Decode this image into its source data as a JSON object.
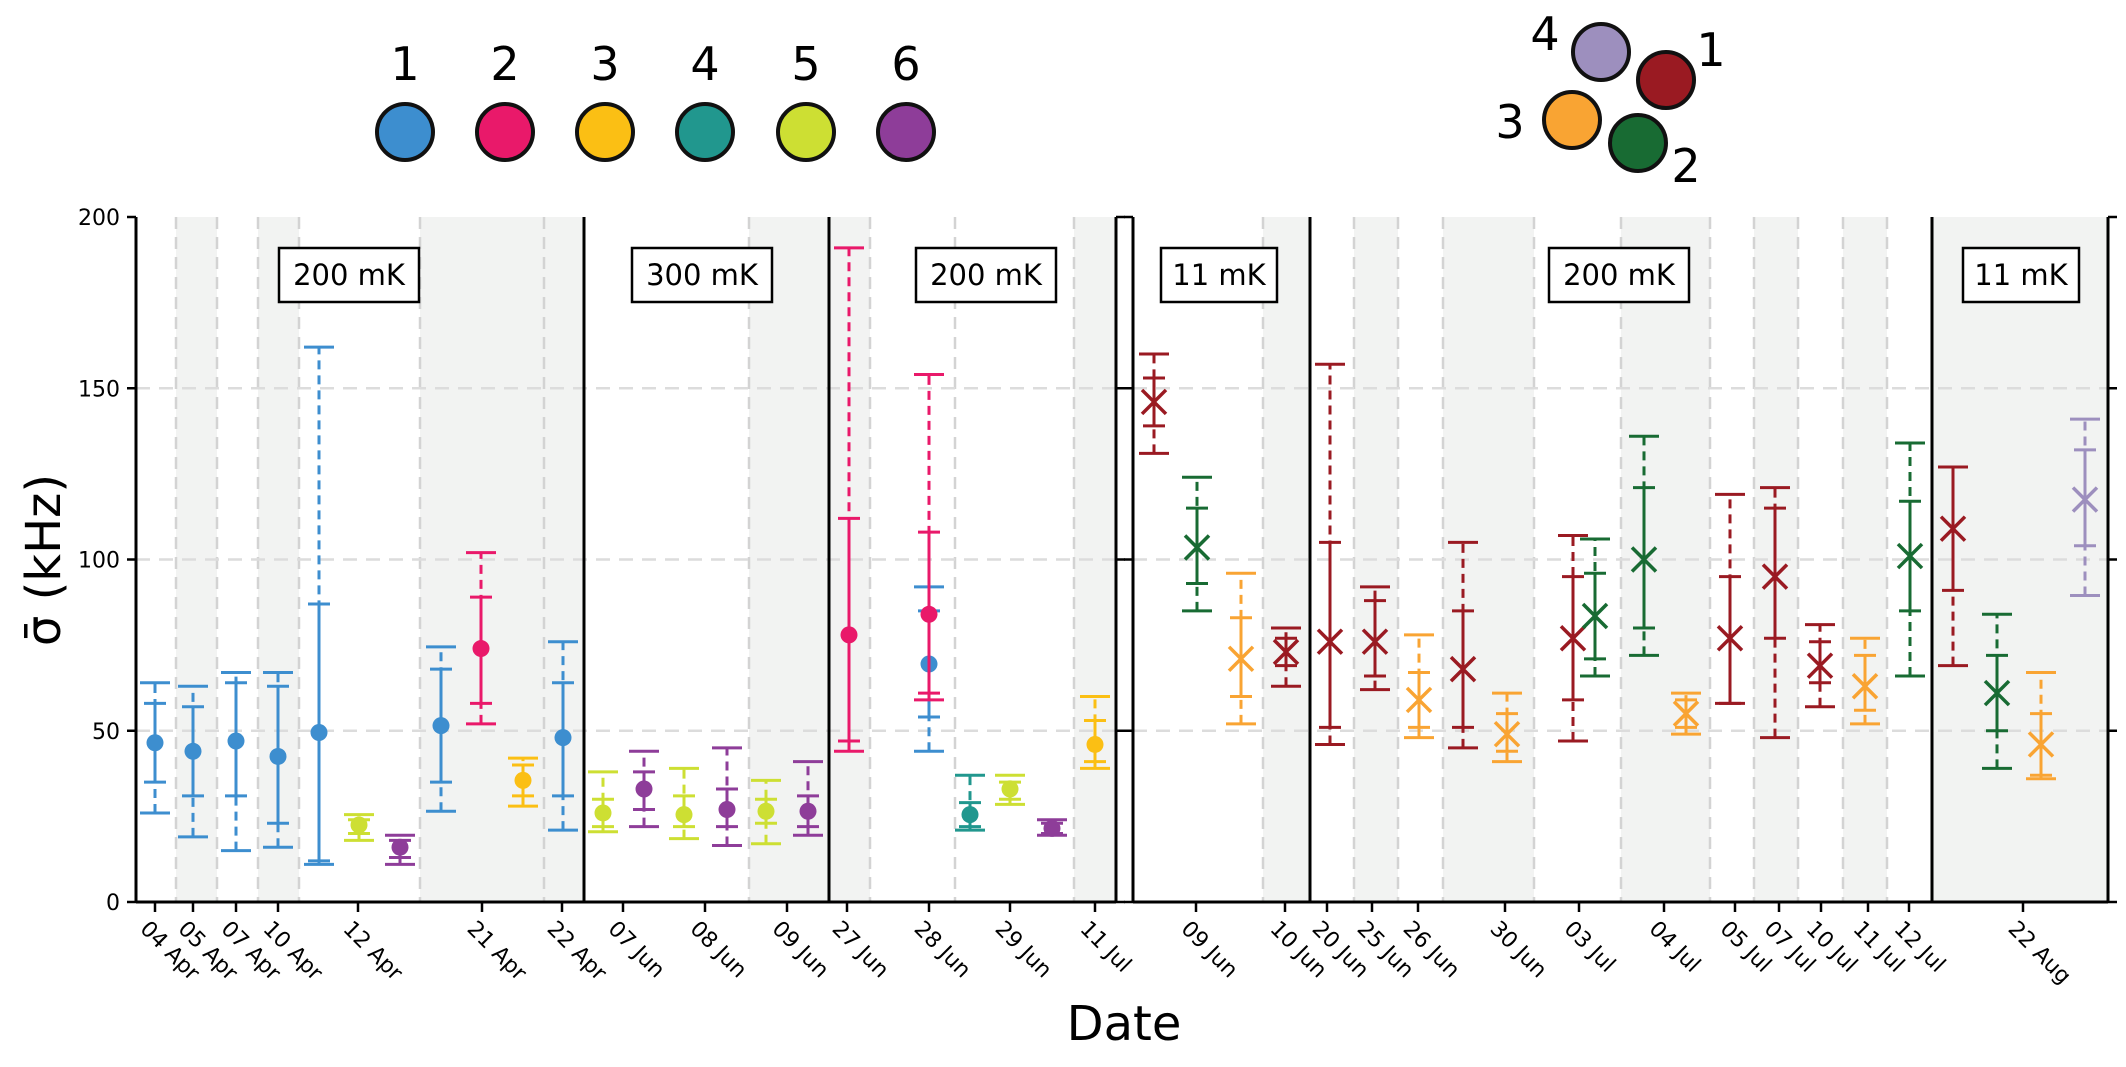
{
  "chart_data": {
    "type": "errorbar",
    "ylabel": "σ̄ (kHz)",
    "xlabel": "Date",
    "ylim": [
      0,
      200
    ],
    "yticks": [
      0,
      50,
      100,
      150,
      200
    ],
    "grid": "horizontal dashed",
    "colors": {
      "1": "#3d8ecf",
      "2": "#e9196a",
      "3": "#fbbf14",
      "4": "#21978e",
      "5": "#cddf33",
      "6": "#8e3d99",
      "r1": "#9a1a22",
      "r2": "#186b33",
      "r3": "#f9a433",
      "r4": "#9d8fbe"
    },
    "legends": {
      "left": {
        "labels": [
          "1",
          "2",
          "3",
          "4",
          "5",
          "6"
        ]
      },
      "right": {
        "labels": [
          "1",
          "2",
          "3",
          "4"
        ]
      }
    },
    "panels": [
      {
        "temp_labels": [
          "200 mK",
          "300 mK",
          "200 mK"
        ],
        "dates": [
          "04 Apr",
          "05 Apr",
          "07 Apr",
          "10 Apr",
          "12 Apr",
          "21 Apr",
          "22 Apr",
          "07 Jun",
          "08 Jun",
          "09 Jun",
          "27 Jun",
          "28 Jun",
          "29 Jun",
          "11 Jul"
        ],
        "series": [
          {
            "id": "1",
            "points": [
              [
                46.5,
                35,
                58,
                26,
                64
              ],
              [
                44,
                31,
                57,
                19,
                63
              ],
              [
                47,
                31,
                64,
                15,
                67
              ],
              [
                42.5,
                23,
                63,
                16,
                67
              ],
              [
                49.5,
                12,
                87,
                11,
                162
              ],
              [
                51.5,
                35,
                68,
                26.5,
                74.5
              ],
              [
                48,
                31,
                64,
                21,
                76
              ],
              [
                69.5,
                54,
                85,
                44,
                92
              ]
            ]
          },
          {
            "id": "2",
            "points": [
              [
                74,
                58,
                89,
                52,
                102
              ],
              [
                78,
                47,
                112,
                44,
                191
              ],
              [
                84,
                61,
                108,
                59,
                154
              ]
            ]
          },
          {
            "id": "3",
            "points": [
              [
                35.5,
                31,
                40,
                28,
                42
              ],
              [
                46,
                41,
                53,
                39,
                60
              ]
            ]
          },
          {
            "id": "4",
            "points": [
              [
                25.5,
                22,
                29,
                21,
                37
              ]
            ]
          },
          {
            "id": "5",
            "points": [
              [
                22.5,
                20,
                24,
                18,
                25.5
              ],
              [
                26,
                22,
                30,
                20.5,
                38
              ],
              [
                25.5,
                22,
                31,
                18.5,
                39
              ],
              [
                26.5,
                23,
                30,
                17,
                35.5
              ],
              [
                33,
                30,
                35,
                28.5,
                37
              ]
            ]
          },
          {
            "id": "6",
            "points": [
              [
                16,
                13,
                18,
                11,
                19.5
              ],
              [
                33,
                27,
                38,
                22,
                44
              ],
              [
                27,
                22,
                33,
                16.5,
                45
              ],
              [
                26.5,
                22,
                31,
                19.5,
                41
              ],
              [
                21.5,
                20,
                23,
                19.5,
                24
              ]
            ]
          }
        ]
      },
      {
        "temp_labels": [
          "11 mK",
          "200 mK",
          "11 mK"
        ],
        "dates": [
          "09 Jun",
          "10 Jun",
          "20 Jun",
          "25 Jun",
          "26 Jun",
          "30 Jun",
          "03 Jul",
          "04 Jul",
          "05 Jul",
          "07 Jul",
          "10 Jul",
          "11 Jul",
          "12 Jul",
          "22 Aug"
        ],
        "series": [
          {
            "id": "r1",
            "points": [
              [
                146,
                139,
                153,
                131,
                160
              ],
              [
                73,
                69,
                77,
                63,
                80
              ],
              [
                76,
                51,
                105,
                46,
                157
              ],
              [
                76,
                66,
                88,
                62,
                92
              ],
              [
                68,
                51,
                85,
                45,
                105
              ],
              [
                77,
                59,
                95,
                47,
                107
              ],
              [
                77,
                58,
                95,
                58,
                119
              ],
              [
                95,
                77,
                115,
                48,
                121
              ],
              [
                69,
                64,
                76,
                57,
                81
              ],
              [
                109,
                91,
                127,
                69,
                127
              ]
            ]
          },
          {
            "id": "r2",
            "points": [
              [
                103.5,
                93,
                115,
                85,
                124
              ],
              [
                83.5,
                71,
                96,
                66,
                106
              ],
              [
                100,
                80,
                121,
                72,
                136
              ],
              [
                101,
                85,
                117,
                66,
                134
              ],
              [
                61,
                50,
                72,
                39,
                84
              ]
            ]
          },
          {
            "id": "r3",
            "points": [
              [
                71,
                60,
                83,
                52,
                96
              ],
              [
                59,
                51,
                67,
                48,
                78
              ],
              [
                49,
                44,
                55,
                41,
                61
              ],
              [
                55,
                51,
                59,
                49,
                61
              ],
              [
                63,
                56,
                72,
                52,
                77
              ],
              [
                46,
                37,
                55,
                36,
                67
              ]
            ]
          },
          {
            "id": "r4",
            "points": [
              [
                117.5,
                104,
                132,
                89.5,
                141
              ]
            ]
          }
        ]
      }
    ]
  }
}
